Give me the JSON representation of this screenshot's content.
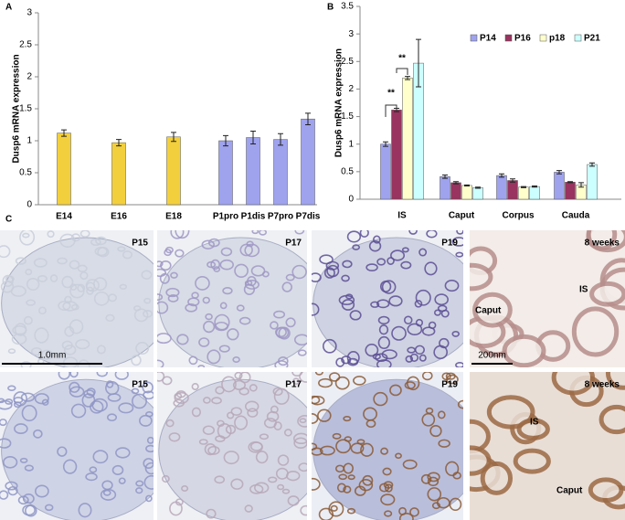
{
  "panels": {
    "a": "A",
    "b": "B",
    "c": "C"
  },
  "chart_data": [
    {
      "type": "bar",
      "ylabel": "Dusp6 mRNA expression",
      "categories": [
        "E14",
        "E16",
        "E18",
        "P1pro",
        "P1dis",
        "P7pro",
        "P7dis"
      ],
      "values": [
        1.12,
        0.97,
        1.06,
        1.0,
        1.05,
        1.02,
        1.34
      ],
      "errors": [
        0.05,
        0.05,
        0.07,
        0.08,
        0.1,
        0.09,
        0.09
      ],
      "colors": [
        "#f2cf3c",
        "#f2cf3c",
        "#f2cf3c",
        "#9fa3ee",
        "#9fa3ee",
        "#9fa3ee",
        "#9fa3ee"
      ],
      "ylim": [
        0,
        3
      ],
      "yticks": [
        0,
        0.5,
        1,
        1.5,
        2,
        2.5,
        3
      ]
    },
    {
      "type": "grouped_bar",
      "ylabel": "Dusp6 mRNA expression",
      "categories": [
        "IS",
        "Caput",
        "Corpus",
        "Cauda"
      ],
      "series": [
        {
          "name": "P14",
          "color": "#9fa3ee",
          "values": [
            1.0,
            0.41,
            0.43,
            0.49
          ],
          "errors": [
            0.04,
            0.03,
            0.03,
            0.03
          ]
        },
        {
          "name": "P16",
          "color": "#99335f",
          "values": [
            1.62,
            0.3,
            0.34,
            0.31
          ],
          "errors": [
            0.03,
            0.02,
            0.03,
            0.01
          ]
        },
        {
          "name": "p18",
          "color": "#ffffcc",
          "values": [
            2.2,
            0.25,
            0.22,
            0.26
          ],
          "errors": [
            0.03,
            0.01,
            0.01,
            0.04
          ]
        },
        {
          "name": "P21",
          "color": "#ccffff",
          "values": [
            2.47,
            0.21,
            0.23,
            0.63
          ],
          "errors": [
            0.43,
            0.01,
            0.01,
            0.03
          ]
        }
      ],
      "ylim": [
        0,
        3.5
      ],
      "yticks": [
        0,
        0.5,
        1,
        1.5,
        2,
        2.5,
        3,
        3.5
      ],
      "annotations": [
        "**",
        "**"
      ],
      "legend": "top-right"
    }
  ],
  "images": [
    {
      "label": "P15",
      "scale": "1.0mm"
    },
    {
      "label": "P17"
    },
    {
      "label": "P19"
    },
    {
      "label": "8 weeks",
      "tags": [
        "Caput",
        "IS"
      ],
      "scale": "200nm"
    },
    {
      "label": "P15"
    },
    {
      "label": "P17"
    },
    {
      "label": "P19"
    },
    {
      "label": "8 weeks",
      "tags": [
        "IS",
        "Caput"
      ]
    }
  ]
}
